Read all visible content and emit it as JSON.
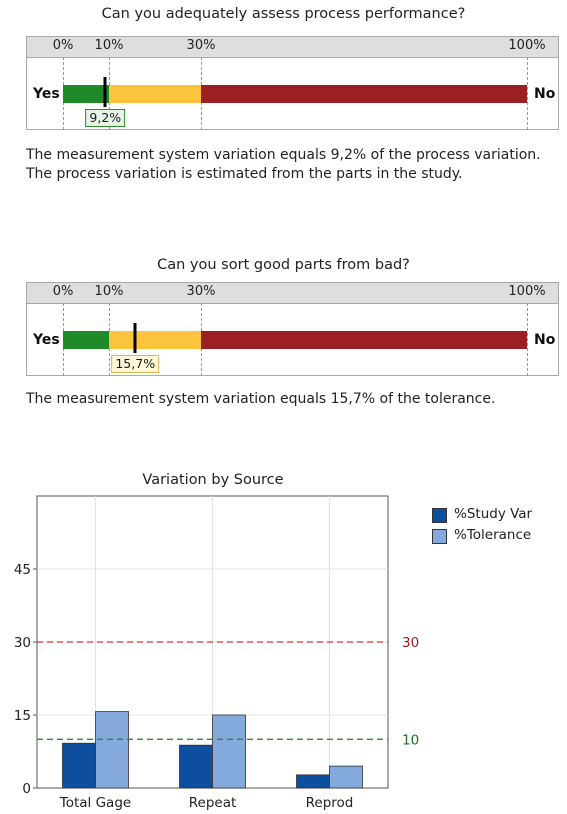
{
  "gauges": [
    {
      "title": "Can you adequately assess process performance?",
      "ticks": [
        "0%",
        "10%",
        "30%",
        "100%"
      ],
      "tick_values": [
        0,
        10,
        30,
        100
      ],
      "left_label": "Yes",
      "right_label": "No",
      "value": 9.2,
      "value_label": "9,2%",
      "badge_color": "#2e8b2e",
      "badge_bg": "#e6f3e6",
      "description": "The measurement system variation equals 9,2% of the process variation. The process variation is estimated from the parts in the study."
    },
    {
      "title": "Can you sort good parts from bad?",
      "ticks": [
        "0%",
        "10%",
        "30%",
        "100%"
      ],
      "tick_values": [
        0,
        10,
        30,
        100
      ],
      "left_label": "Yes",
      "right_label": "No",
      "value": 15.7,
      "value_label": "15,7%",
      "badge_color": "#d9b94a",
      "badge_bg": "#fdf6d8",
      "description": "The measurement system variation equals 15,7% of the tolerance."
    }
  ],
  "colors": {
    "green": "#1e8a2a",
    "yellow": "#fbc43c",
    "red": "#9c1f22",
    "study_var": "#0d4f9e",
    "tolerance": "#84a9dc",
    "ref_red": "#d6333a",
    "ref_green": "#2e8b3a"
  },
  "chart_data": {
    "type": "bar",
    "title": "Variation by Source",
    "categories": [
      "Total Gage",
      "Repeat",
      "Reprod"
    ],
    "series": [
      {
        "name": "%Study Var",
        "values": [
          9.2,
          8.8,
          2.7
        ]
      },
      {
        "name": "%Tolerance",
        "values": [
          15.7,
          15.0,
          4.5
        ]
      }
    ],
    "ylim": [
      0,
      60
    ],
    "yticks": [
      0,
      15,
      30,
      45
    ],
    "reference_lines": [
      {
        "value": 30,
        "label": "30",
        "color": "red"
      },
      {
        "value": 10,
        "label": "10",
        "color": "green"
      }
    ],
    "grid": true,
    "legend": "right"
  }
}
